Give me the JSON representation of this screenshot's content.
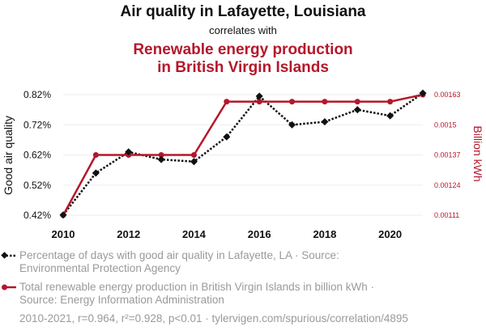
{
  "chart_data": {
    "type": "line",
    "title_line1": "Air quality in Lafayette, Louisiana",
    "subtitle": "correlates with",
    "title_line2a": "Renewable energy production",
    "title_line2b": "in British Virgin Islands",
    "x": [
      2010,
      2011,
      2012,
      2013,
      2014,
      2015,
      2016,
      2017,
      2018,
      2019,
      2020,
      2021
    ],
    "x_ticks": [
      "2010",
      "2012",
      "2014",
      "2016",
      "2018",
      "2020"
    ],
    "left_axis": {
      "label": "Good air quality",
      "ticks": [
        "0.42%",
        "0.52%",
        "0.62%",
        "0.72%",
        "0.82%"
      ],
      "ylim": [
        0.42,
        0.82
      ]
    },
    "right_axis": {
      "label": "Billion kWh",
      "ticks": [
        "0.00111",
        "0.00124",
        "0.00137",
        "0.0015",
        "0.00163"
      ],
      "ylim": [
        0.00111,
        0.00163
      ]
    },
    "series": [
      {
        "name": "Percentage of days with good air quality in Lafayette, LA",
        "axis": "left",
        "color": "#111111",
        "style": "dotted-diamond",
        "values": [
          0.421,
          0.56,
          0.63,
          0.605,
          0.598,
          0.68,
          0.815,
          0.72,
          0.73,
          0.77,
          0.75,
          0.825
        ]
      },
      {
        "name": "Total renewable energy production in British Virgin Islands in billion kWh",
        "axis": "right",
        "color": "#b5172b",
        "style": "solid-circle",
        "values": [
          0.00111,
          0.00137,
          0.00137,
          0.00137,
          0.00137,
          0.0016,
          0.0016,
          0.0016,
          0.0016,
          0.0016,
          0.0016,
          0.00163
        ]
      }
    ]
  },
  "legend": {
    "series1_line1": "Percentage of days with good air quality in Lafayette, LA · Source:",
    "series1_line2": "Environmental Protection Agency",
    "series2_line1": "Total renewable energy production in British Virgin Islands in billion kWh ·",
    "series2_line2": "Source: Energy Information Administration"
  },
  "footer": "2010-2021, r=0.964, r²=0.928, p<0.01 · tylervigen.com/spurious/correlation/4895",
  "colors": {
    "primary": "#111111",
    "secondary": "#b5172b",
    "muted": "#9a9a9a",
    "grid": "#eeeeee"
  }
}
